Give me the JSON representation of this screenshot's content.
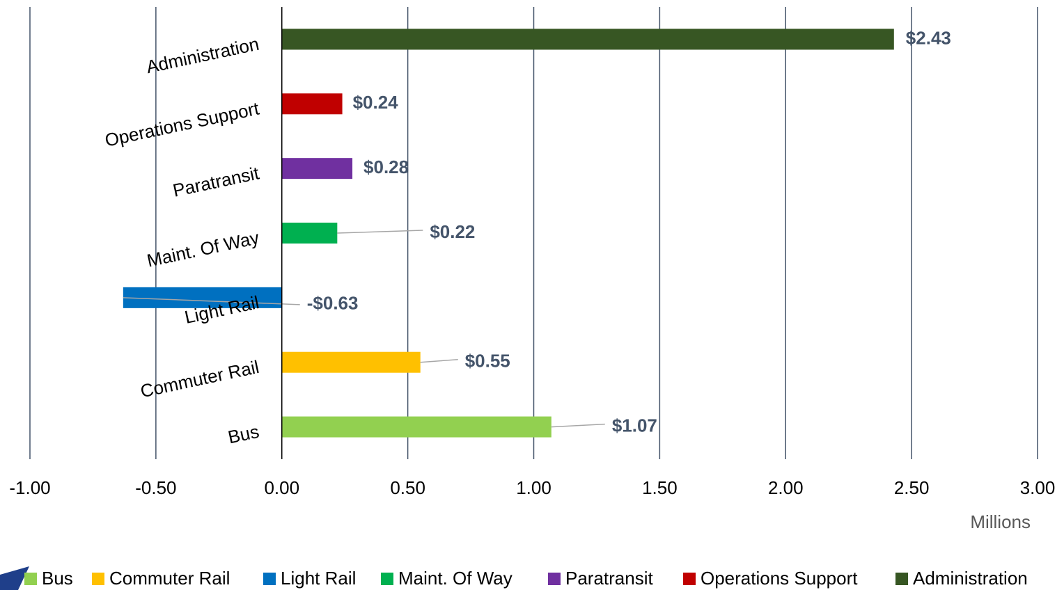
{
  "chart_data": {
    "type": "bar",
    "orientation": "horizontal",
    "categories": [
      "Bus",
      "Commuter Rail",
      "Light Rail",
      "Maint. Of Way",
      "Paratransit",
      "Operations Support",
      "Administration"
    ],
    "values": [
      1.07,
      0.55,
      -0.63,
      0.22,
      0.28,
      0.24,
      2.43
    ],
    "value_labels": [
      "$1.07",
      "$0.55",
      "-$0.63",
      "$0.22",
      "$0.28",
      "$0.24",
      "$2.43"
    ],
    "colors": [
      "#92d050",
      "#ffc000",
      "#0070c0",
      "#00b050",
      "#7030a0",
      "#c00000",
      "#375623"
    ],
    "xlabel": "Millions",
    "xlim": [
      -1,
      3
    ],
    "xticks": [
      {
        "value": -1,
        "label": "-1.00"
      },
      {
        "value": -0.5,
        "label": "-0.50"
      },
      {
        "value": 0,
        "label": "0.00"
      },
      {
        "value": 0.5,
        "label": "0.50"
      },
      {
        "value": 1,
        "label": "1.00"
      },
      {
        "value": 1.5,
        "label": "1.50"
      },
      {
        "value": 2,
        "label": "2.00"
      },
      {
        "value": 2.5,
        "label": "2.50"
      },
      {
        "value": 3,
        "label": "3.00"
      }
    ],
    "grid": true,
    "legend": "bottom"
  }
}
